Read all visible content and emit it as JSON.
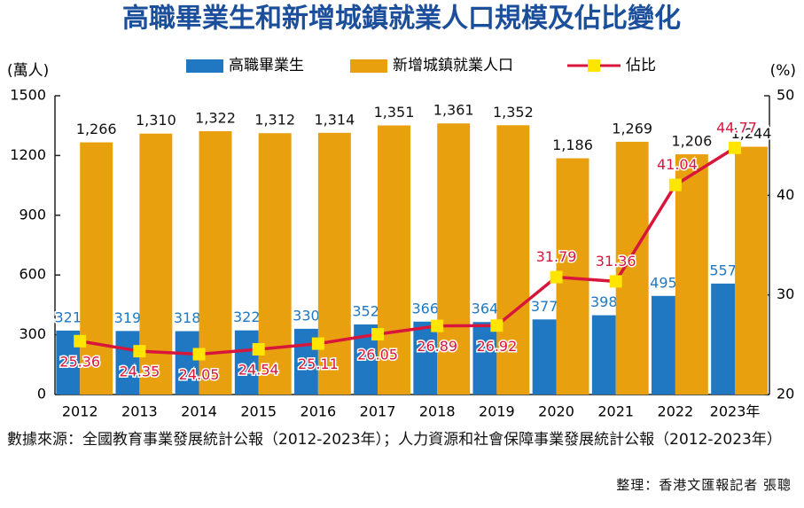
{
  "chart_data": {
    "type": "bar",
    "title": "高職畢業生和新增城鎮就業人口規模及佔比變化",
    "y_label": "(萬人)",
    "y2_label": "(%)",
    "categories": [
      "2012",
      "2013",
      "2014",
      "2015",
      "2016",
      "2017",
      "2018",
      "2019",
      "2020",
      "2021",
      "2022",
      "2023年"
    ],
    "series": [
      {
        "name": "高職畢業生",
        "type": "bar",
        "color": "#1f78c1",
        "values": [
          321,
          319,
          318,
          322,
          330,
          352,
          366,
          364,
          377,
          398,
          495,
          557
        ]
      },
      {
        "name": "新增城鎮就業人口",
        "type": "bar",
        "color": "#e8a00f",
        "values": [
          1266,
          1310,
          1322,
          1312,
          1314,
          1351,
          1361,
          1352,
          1186,
          1269,
          1206,
          1244
        ],
        "value_labels": [
          "1,266",
          "1,310",
          "1,322",
          "1,312",
          "1,314",
          "1,351",
          "1,361",
          "1,352",
          "1,186",
          "1,269",
          "1,206",
          "1,244"
        ]
      },
      {
        "name": "佔比",
        "type": "line",
        "axis": "y2",
        "color": "#d8163c",
        "marker_color": "#ffe500",
        "values": [
          25.36,
          24.35,
          24.05,
          24.54,
          25.11,
          26.05,
          26.89,
          26.92,
          31.79,
          31.36,
          41.04,
          44.77
        ]
      }
    ],
    "ylim": [
      0,
      1500
    ],
    "yticks": [
      0,
      300,
      600,
      900,
      1200,
      1500
    ],
    "y2lim": [
      20,
      50
    ],
    "y2ticks": [
      20,
      30,
      40,
      50
    ],
    "grid": false,
    "source": "數據來源：全國教育事業發展統計公報（2012-2023年）；人力資源和社會保障事業發展統計公報（2012-2023年）",
    "credit": "整理：香港文匯報記者 張聰"
  }
}
